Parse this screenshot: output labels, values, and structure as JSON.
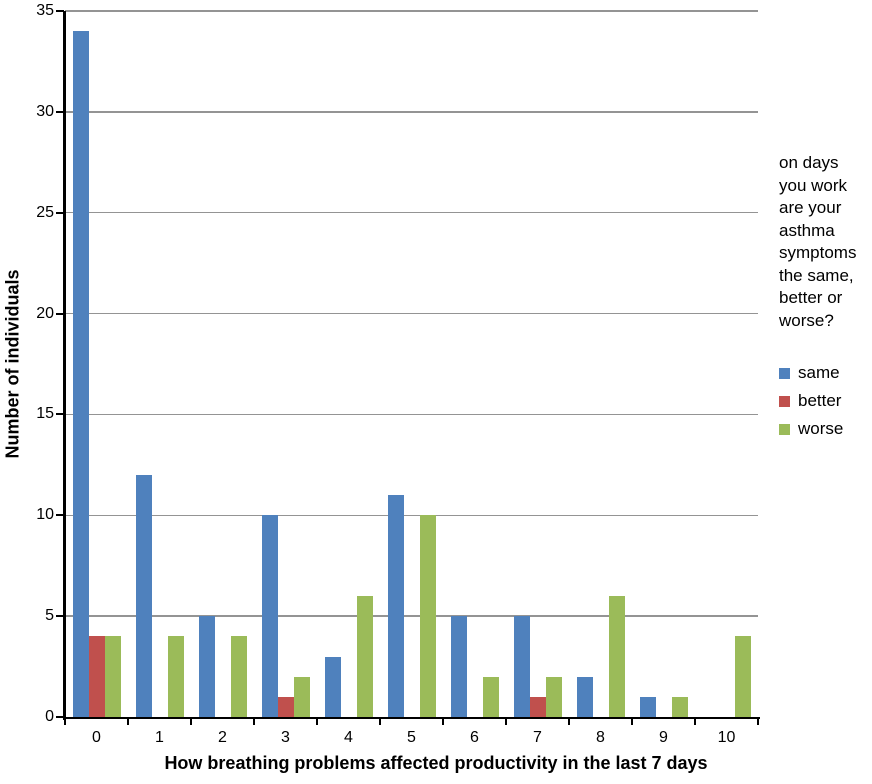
{
  "chart_data": {
    "type": "bar",
    "title": "",
    "xlabel": "How breathing problems affected productivity in the last 7 days",
    "ylabel": "Number of individuals",
    "categories": [
      "0",
      "1",
      "2",
      "3",
      "4",
      "5",
      "6",
      "7",
      "8",
      "9",
      "10"
    ],
    "series": [
      {
        "name": "same",
        "color": "#4F81BD",
        "values": [
          34,
          12,
          5,
          10,
          3,
          11,
          5,
          5,
          2,
          1,
          0
        ]
      },
      {
        "name": "better",
        "color": "#C0504D",
        "values": [
          4,
          0,
          0,
          1,
          0,
          0,
          0,
          1,
          0,
          0,
          0
        ]
      },
      {
        "name": "worse",
        "color": "#9BBB59",
        "values": [
          4,
          4,
          4,
          2,
          6,
          10,
          2,
          2,
          6,
          1,
          4
        ]
      }
    ],
    "ylim": [
      0,
      35
    ],
    "yticks": [
      0,
      5,
      10,
      15,
      20,
      25,
      30,
      35
    ],
    "grid": "horizontal",
    "legend_position": "right"
  },
  "legend": {
    "title": "on days you work are your asthma symptoms the same, better or worse?",
    "items": [
      {
        "label": "same",
        "color": "#4F81BD"
      },
      {
        "label": "better",
        "color": "#C0504D"
      },
      {
        "label": "worse",
        "color": "#9BBB59"
      }
    ]
  },
  "style": {
    "background": "#FFFFFF",
    "gridline_color": "#949494",
    "axis_color": "#000000"
  }
}
